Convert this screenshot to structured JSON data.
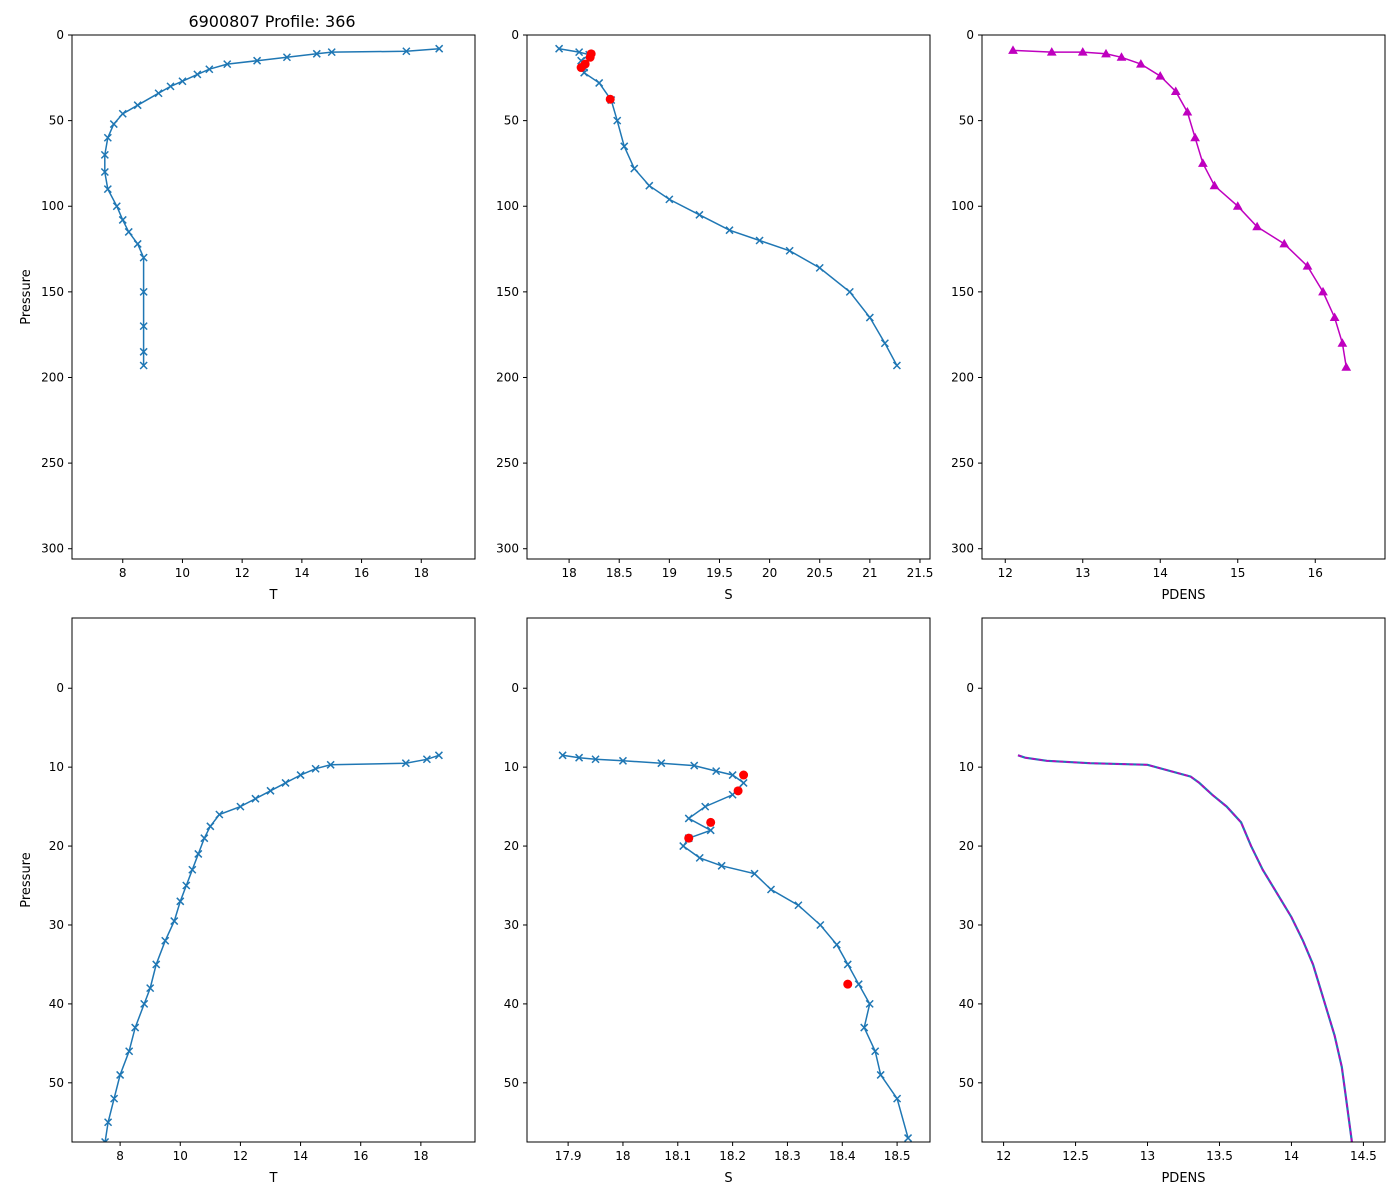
{
  "figure_title": "6900807 Profile: 366",
  "colors": {
    "series": "#1f77b4",
    "qc_flag": "#ff0000",
    "density": "#bf00bf",
    "axis": "#000000"
  },
  "chart_data": [
    {
      "id": "temp-full",
      "type": "line",
      "marker": "x",
      "color": "#1f77b4",
      "xlabel": "T",
      "ylabel": "Pressure",
      "y_inverted": true,
      "xlim": [
        6.3,
        19.8
      ],
      "ylim": [
        306,
        0
      ],
      "xticks": [
        8,
        10,
        12,
        14,
        16,
        18
      ],
      "yticks": [
        0,
        50,
        100,
        150,
        200,
        250,
        300
      ],
      "series": [
        {
          "name": "T",
          "x": [
            18.6,
            17.5,
            15.0,
            14.5,
            13.5,
            12.5,
            11.5,
            10.9,
            10.5,
            10.0,
            9.6,
            9.2,
            8.5,
            8.0,
            7.7,
            7.5,
            7.4,
            7.4,
            7.5,
            7.8,
            8.0,
            8.2,
            8.5,
            8.7,
            8.7,
            8.7,
            8.7,
            8.7
          ],
          "y": [
            8,
            9.5,
            10,
            11,
            13,
            15,
            17,
            20,
            23,
            27,
            30,
            34,
            41,
            46,
            52,
            60,
            70,
            80,
            90,
            100,
            108,
            115,
            122,
            130,
            150,
            170,
            185,
            193
          ]
        }
      ],
      "qc_points": []
    },
    {
      "id": "sal-full",
      "type": "line",
      "marker": "x",
      "color": "#1f77b4",
      "xlabel": "S",
      "ylabel": "",
      "y_inverted": true,
      "xlim": [
        17.58,
        21.6
      ],
      "ylim": [
        306,
        0
      ],
      "xticks": [
        18.0,
        18.5,
        19.0,
        19.5,
        20.0,
        20.5,
        21.0,
        21.5
      ],
      "yticks": [
        0,
        50,
        100,
        150,
        200,
        250,
        300
      ],
      "series": [
        {
          "name": "S",
          "x": [
            17.9,
            18.1,
            18.2,
            18.12,
            18.15,
            18.15,
            18.3,
            18.42,
            18.48,
            18.55,
            18.65,
            18.8,
            19.0,
            19.3,
            19.6,
            19.9,
            20.2,
            20.5,
            20.8,
            21.0,
            21.15,
            21.27
          ],
          "y": [
            8,
            10,
            11.5,
            15,
            19,
            22,
            28,
            38,
            50,
            65,
            78,
            88,
            96,
            105,
            114,
            120,
            126,
            136,
            150,
            165,
            180,
            193
          ]
        }
      ],
      "qc_points": {
        "x": [
          18.22,
          18.21,
          18.16,
          18.12,
          18.41
        ],
        "y": [
          11,
          13,
          17,
          19,
          37.5
        ]
      }
    },
    {
      "id": "pdens-full",
      "type": "line",
      "marker": "triangle",
      "color": "#bf00bf",
      "xlabel": "PDENS",
      "ylabel": "",
      "y_inverted": true,
      "xlim": [
        11.7,
        16.9
      ],
      "ylim": [
        306,
        0
      ],
      "xticks": [
        12,
        13,
        14,
        15,
        16
      ],
      "yticks": [
        0,
        50,
        100,
        150,
        200,
        250,
        300
      ],
      "series": [
        {
          "name": "PDENS",
          "x": [
            12.1,
            12.6,
            13.0,
            13.3,
            13.5,
            13.75,
            14.0,
            14.2,
            14.35,
            14.45,
            14.55,
            14.7,
            15.0,
            15.25,
            15.6,
            15.9,
            16.1,
            16.25,
            16.35,
            16.4
          ],
          "y": [
            9,
            10,
            10,
            11,
            13,
            17,
            24,
            33,
            45,
            60,
            75,
            88,
            100,
            112,
            122,
            135,
            150,
            165,
            180,
            194
          ]
        }
      ],
      "qc_points": []
    },
    {
      "id": "temp-zoom",
      "type": "line",
      "marker": "x",
      "color": "#1f77b4",
      "xlabel": "T",
      "ylabel": "Pressure",
      "y_inverted": true,
      "xlim": [
        6.4,
        19.8
      ],
      "ylim": [
        57.5,
        -8.9
      ],
      "xticks": [
        8,
        10,
        12,
        14,
        16,
        18
      ],
      "yticks": [
        0,
        10,
        20,
        30,
        40,
        50
      ],
      "series": [
        {
          "name": "T",
          "x": [
            18.6,
            18.2,
            17.5,
            15.0,
            14.5,
            14.0,
            13.5,
            13.0,
            12.5,
            12.0,
            11.3,
            11.0,
            10.8,
            10.6,
            10.4,
            10.2,
            10.0,
            9.8,
            9.5,
            9.2,
            9.0,
            8.8,
            8.5,
            8.3,
            8.0,
            7.8,
            7.6,
            7.5
          ],
          "y": [
            8.5,
            9.0,
            9.5,
            9.7,
            10.2,
            11.0,
            12.0,
            13.0,
            14.0,
            15.0,
            16.0,
            17.5,
            19.0,
            21.0,
            23.0,
            25.0,
            27.0,
            29.5,
            32.0,
            35.0,
            38.0,
            40.0,
            43.0,
            46.0,
            49.0,
            52.0,
            55.0,
            57.5
          ]
        }
      ],
      "qc_points": []
    },
    {
      "id": "sal-zoom",
      "type": "line",
      "marker": "x",
      "color": "#1f77b4",
      "xlabel": "S",
      "ylabel": "",
      "y_inverted": true,
      "xlim": [
        17.825,
        18.56
      ],
      "ylim": [
        57.5,
        -8.9
      ],
      "xticks": [
        17.9,
        18.0,
        18.1,
        18.2,
        18.3,
        18.4,
        18.5
      ],
      "yticks": [
        0,
        10,
        20,
        30,
        40,
        50
      ],
      "series": [
        {
          "name": "S",
          "x": [
            17.89,
            17.92,
            17.95,
            18.0,
            18.07,
            18.13,
            18.17,
            18.2,
            18.22,
            18.2,
            18.15,
            18.12,
            18.16,
            18.12,
            18.11,
            18.14,
            18.18,
            18.24,
            18.27,
            18.32,
            18.36,
            18.39,
            18.41,
            18.43,
            18.45,
            18.44,
            18.46,
            18.47,
            18.5,
            18.52
          ],
          "y": [
            8.5,
            8.8,
            9.0,
            9.2,
            9.5,
            9.8,
            10.5,
            11.0,
            12.0,
            13.5,
            15.0,
            16.5,
            18.0,
            19.0,
            20.0,
            21.5,
            22.5,
            23.5,
            25.5,
            27.5,
            30.0,
            32.5,
            35.0,
            37.5,
            40.0,
            43.0,
            46.0,
            49.0,
            52.0,
            57.0
          ]
        }
      ],
      "qc_points": {
        "x": [
          18.22,
          18.21,
          18.16,
          18.12,
          18.41
        ],
        "y": [
          11,
          13,
          17,
          19,
          37.5
        ]
      }
    },
    {
      "id": "pdens-zoom",
      "type": "line",
      "marker": "none",
      "color": "#bf00bf",
      "xlabel": "PDENS",
      "ylabel": "",
      "y_inverted": true,
      "xlim": [
        11.85,
        14.65
      ],
      "ylim": [
        57.5,
        -8.9
      ],
      "xticks": [
        12.0,
        12.5,
        13.0,
        13.5,
        14.0,
        14.5
      ],
      "yticks": [
        0,
        10,
        20,
        30,
        40,
        50
      ],
      "series": [
        {
          "name": "PDENS",
          "x": [
            12.1,
            12.15,
            12.3,
            12.6,
            13.0,
            13.3,
            13.36,
            13.45,
            13.55,
            13.65,
            13.72,
            13.8,
            13.9,
            14.0,
            14.08,
            14.15,
            14.2,
            14.25,
            14.3,
            14.35,
            14.38,
            14.42
          ],
          "y": [
            8.5,
            8.8,
            9.2,
            9.5,
            9.7,
            11.2,
            12.0,
            13.5,
            15.0,
            17.0,
            20.0,
            23.0,
            26.0,
            29.0,
            32.0,
            35.0,
            38.0,
            41.0,
            44.0,
            48.0,
            52.0,
            57.5
          ]
        }
      ],
      "qc_points": []
    }
  ]
}
